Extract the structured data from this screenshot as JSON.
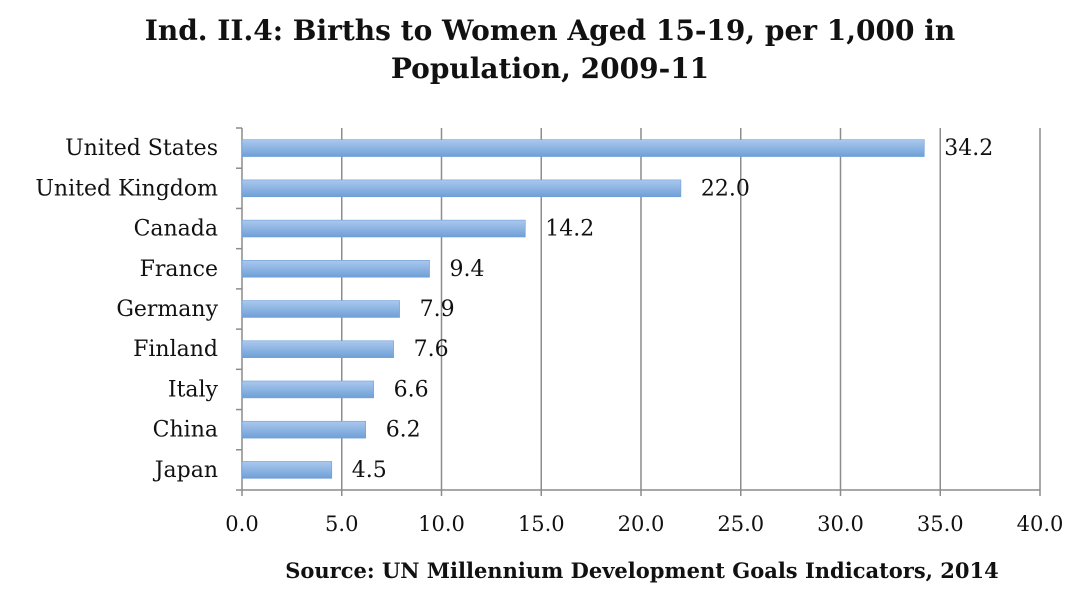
{
  "chart_data": {
    "type": "bar",
    "orientation": "horizontal",
    "title_lines": [
      "Ind. II.4: Births to Women Aged 15-19, per 1,000 in",
      "Population, 2009-11"
    ],
    "source": "Source: UN Millennium Development Goals Indicators, 2014",
    "categories": [
      "United States",
      "United Kingdom",
      "Canada",
      "France",
      "Germany",
      "Finland",
      "Italy",
      "China",
      "Japan"
    ],
    "values": [
      34.2,
      22.0,
      14.2,
      9.4,
      7.9,
      7.6,
      6.6,
      6.2,
      4.5
    ],
    "value_labels": [
      "34.2",
      "22.0",
      "14.2",
      "9.4",
      "7.9",
      "7.6",
      "6.6",
      "6.2",
      "4.5"
    ],
    "xlim": [
      0,
      40
    ],
    "xticks": [
      "0.0",
      "5.0",
      "10.0",
      "15.0",
      "20.0",
      "25.0",
      "30.0",
      "35.0",
      "40.0"
    ],
    "grid": "vertical",
    "legend": "none",
    "colors": {
      "bar": "#8db4e2",
      "bar_dark": "#6f9fd8",
      "grid": "#8c8c8c",
      "axis": "#8c8c8c"
    }
  }
}
